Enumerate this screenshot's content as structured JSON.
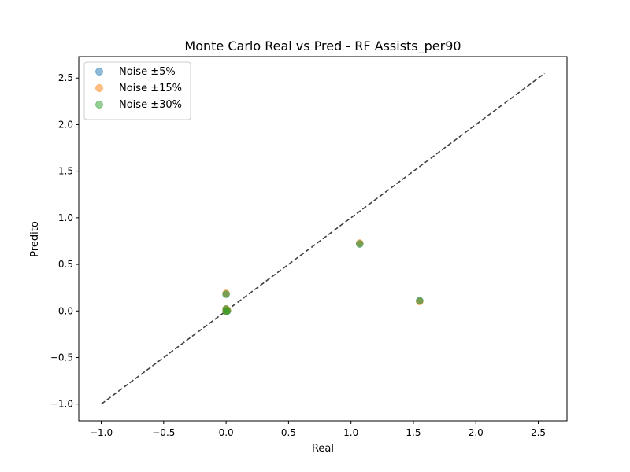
{
  "chart_data": {
    "type": "scatter",
    "title": "Monte Carlo Real vs Pred - RF Assists_per90",
    "xlabel": "Real",
    "ylabel": "Predito",
    "xlim": [
      -1.18,
      2.73
    ],
    "ylim": [
      -1.18,
      2.73
    ],
    "xticks": [
      -1.0,
      -0.5,
      0.0,
      0.5,
      1.0,
      1.5,
      2.0,
      2.5
    ],
    "yticks": [
      -1.0,
      -0.5,
      0.0,
      0.5,
      1.0,
      1.5,
      2.0,
      2.5
    ],
    "xtick_labels": [
      "−1.0",
      "−0.5",
      "0.0",
      "0.5",
      "1.0",
      "1.5",
      "2.0",
      "2.5"
    ],
    "ytick_labels": [
      "−1.0",
      "−0.5",
      "0.0",
      "0.5",
      "1.0",
      "1.5",
      "2.0",
      "2.5"
    ],
    "grid": false,
    "legend_position": "top-left",
    "reference_line": {
      "style": "dashed",
      "color": "#404040",
      "from": [
        -1.0,
        -1.0
      ],
      "to": [
        2.55,
        2.55
      ]
    },
    "series": [
      {
        "name": "Noise ±5%",
        "color": "#1f77b4",
        "points": [
          [
            0.0,
            0.18
          ],
          [
            0.0,
            0.02
          ],
          [
            0.0,
            0.0
          ],
          [
            0.01,
            0.0
          ],
          [
            1.07,
            0.72
          ],
          [
            1.55,
            0.11
          ]
        ]
      },
      {
        "name": "Noise ±15%",
        "color": "#ff7f0e",
        "points": [
          [
            0.0,
            0.19
          ],
          [
            0.0,
            0.02
          ],
          [
            0.0,
            0.0
          ],
          [
            0.01,
            0.01
          ],
          [
            1.07,
            0.73
          ],
          [
            1.55,
            0.1
          ]
        ]
      },
      {
        "name": "Noise ±30%",
        "color": "#2ca02c",
        "points": [
          [
            0.0,
            0.18
          ],
          [
            0.0,
            0.02
          ],
          [
            0.0,
            -0.01
          ],
          [
            0.01,
            0.0
          ],
          [
            1.07,
            0.72
          ],
          [
            1.55,
            0.11
          ]
        ]
      }
    ]
  }
}
